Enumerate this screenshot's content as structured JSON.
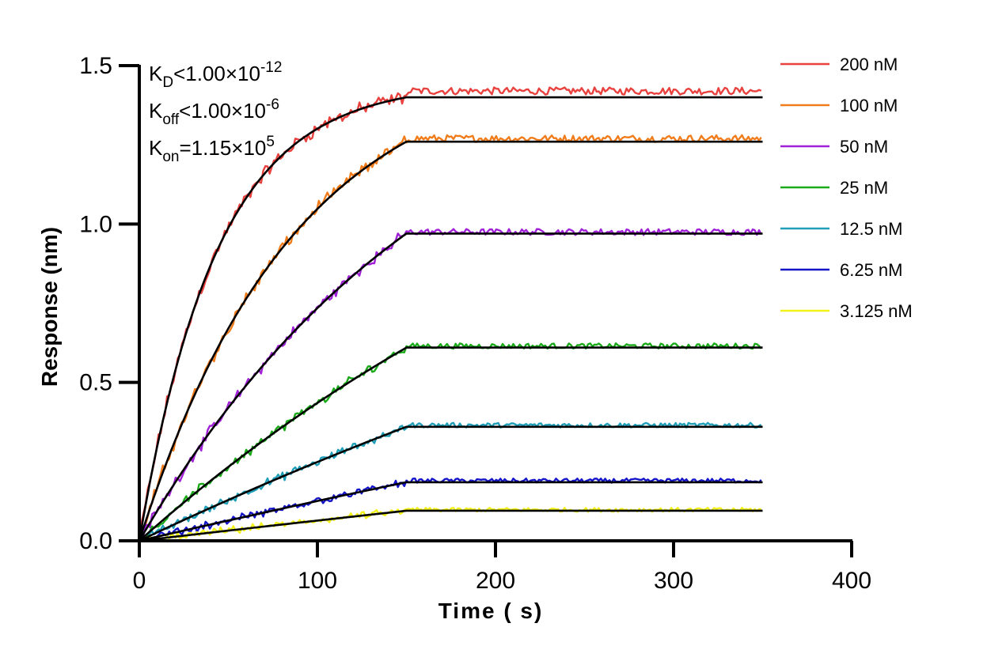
{
  "chart_data": {
    "type": "line",
    "xlabel": "Time ( s)",
    "ylabel": "Response (nm)",
    "xlim": [
      0,
      400
    ],
    "ylim": [
      0,
      1.5
    ],
    "xticks": [
      "0",
      "100",
      "200",
      "300",
      "400"
    ],
    "yticks": [
      "0.0",
      "0.5",
      "1.0",
      "1.5"
    ],
    "grid": false,
    "legend_position": "right",
    "association_end_s": 150,
    "end_time_s": 350,
    "annotations": [
      {
        "base": "K",
        "sub": "D",
        "rel": "<",
        "value": "1.00×10",
        "exp": "-12"
      },
      {
        "base": "K",
        "sub": "off",
        "rel": "<",
        "value": "1.00×10",
        "exp": "-6"
      },
      {
        "base": "K",
        "sub": "on",
        "rel": "=",
        "value": "1.15×10",
        "exp": "5"
      }
    ],
    "fit_color": "#000000",
    "series": [
      {
        "name": "200 nM",
        "color": "#e8413e",
        "plateau": 1.4,
        "noisy_plateau": 1.42,
        "k_obs": 0.023
      },
      {
        "name": "100 nM",
        "color": "#f07c1b",
        "plateau": 1.26,
        "noisy_plateau": 1.27,
        "k_obs": 0.0115
      },
      {
        "name": "50 nM",
        "color": "#a020d8",
        "plateau": 0.97,
        "noisy_plateau": 0.975,
        "k_obs": 0.0058
      },
      {
        "name": "25 nM",
        "color": "#1aaa1a",
        "plateau": 0.61,
        "noisy_plateau": 0.615,
        "k_obs": 0.0029
      },
      {
        "name": "12.5 nM",
        "color": "#1f9fb8",
        "plateau": 0.36,
        "noisy_plateau": 0.365,
        "k_obs": 0.0015
      },
      {
        "name": "6.25 nM",
        "color": "#1414c8",
        "plateau": 0.185,
        "noisy_plateau": 0.19,
        "k_obs": 0.0008
      },
      {
        "name": "3.125 nM",
        "color": "#f2f21a",
        "plateau": 0.095,
        "noisy_plateau": 0.098,
        "k_obs": 0.0004
      }
    ]
  }
}
